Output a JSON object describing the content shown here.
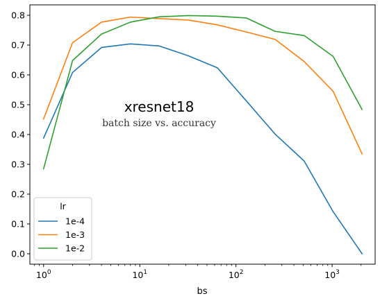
{
  "chart_data": {
    "type": "line",
    "title": "xresnet18",
    "subtitle": "batch size vs. accuracy",
    "xlabel": "bs",
    "ylabel": "",
    "xscale": "log",
    "xlim": [
      0.72,
      2800
    ],
    "ylim": [
      -0.035,
      0.835
    ],
    "yticks": [
      "0.0",
      "0.1",
      "0.2",
      "0.3",
      "0.4",
      "0.5",
      "0.6",
      "0.7",
      "0.8"
    ],
    "xticks": [
      {
        "base": "10",
        "exp": "0"
      },
      {
        "base": "10",
        "exp": "1"
      },
      {
        "base": "10",
        "exp": "2"
      },
      {
        "base": "10",
        "exp": "3"
      }
    ],
    "grid": false,
    "legend": {
      "title": "lr",
      "placement": "lower-left"
    },
    "x": [
      1,
      2,
      4,
      8,
      16,
      32,
      64,
      128,
      256,
      512,
      1024,
      2048
    ],
    "series": [
      {
        "name": "1e-4",
        "color": "#1f77b4",
        "values": [
          0.388,
          0.608,
          0.692,
          0.704,
          0.697,
          0.664,
          0.624,
          0.513,
          0.401,
          0.311,
          0.141,
          0.0
        ]
      },
      {
        "name": "1e-3",
        "color": "#ff7f0e",
        "values": [
          0.452,
          0.708,
          0.777,
          0.794,
          0.789,
          0.784,
          0.768,
          0.744,
          0.719,
          0.645,
          0.545,
          0.335
        ]
      },
      {
        "name": "1e-2",
        "color": "#2ca02c",
        "values": [
          0.285,
          0.648,
          0.737,
          0.777,
          0.795,
          0.799,
          0.797,
          0.791,
          0.746,
          0.732,
          0.662,
          0.484
        ]
      }
    ]
  }
}
